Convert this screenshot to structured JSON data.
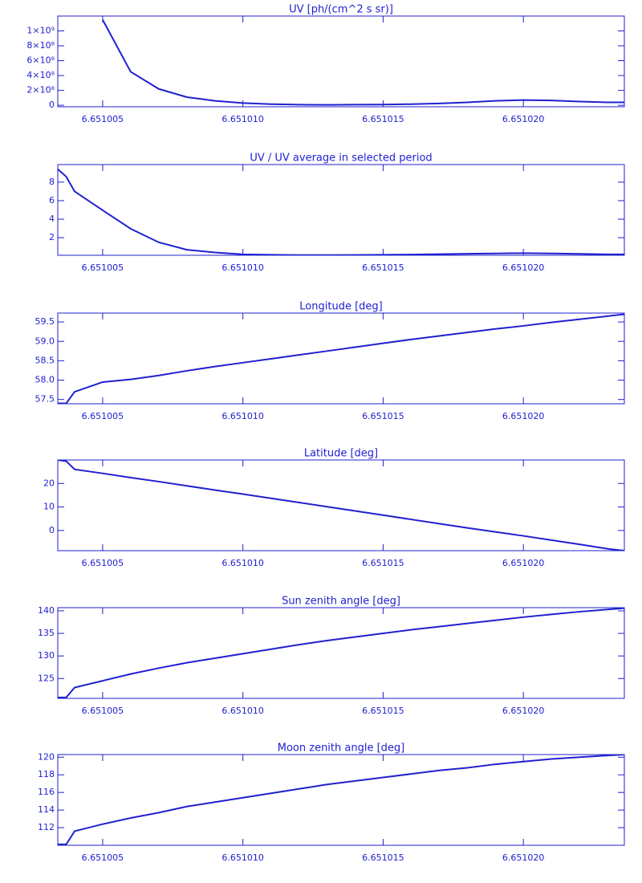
{
  "chart_data": [
    {
      "type": "line",
      "title": "UV [ph/(cm^2 s sr)]",
      "color": "#2020d0",
      "x": [
        6.6510034,
        6.6510037,
        6.651004,
        6.651005,
        6.651006,
        6.651007,
        6.651008,
        6.651009,
        6.65101,
        6.651011,
        6.651012,
        6.651013,
        6.651014,
        6.651015,
        6.651016,
        6.651017,
        6.651018,
        6.651019,
        6.65102,
        6.651021,
        6.651022,
        6.651023,
        6.6510236
      ],
      "values": [
        null,
        null,
        null,
        1150000000,
        450000000,
        220000000,
        110000000,
        60000000,
        30000000,
        15000000,
        8000000,
        6000000,
        8000000,
        10000000,
        15000000,
        25000000,
        40000000,
        60000000,
        70000000,
        65000000,
        50000000,
        40000000,
        40000000
      ],
      "xlim": [
        6.6510034,
        6.6510236
      ],
      "xticks": [
        6.651005,
        {
          "value": 6.65101,
          "label": "6.651010"
        },
        6.651015,
        {
          "value": 6.65102,
          "label": "6.651020"
        }
      ],
      "ylim": [
        -20000000,
        1200000000
      ],
      "yticks": [
        0,
        {
          "value": 200000000,
          "label": "2×10⁸"
        },
        {
          "value": 400000000,
          "label": "4×10⁸"
        },
        {
          "value": 600000000,
          "label": "6×10⁸"
        },
        {
          "value": 800000000,
          "label": "8×10⁸"
        },
        {
          "value": 1000000000,
          "label": "1×10⁹"
        }
      ]
    },
    {
      "type": "line",
      "title": "UV / UV average in selected period",
      "color": "#2020d0",
      "x": [
        6.6510034,
        6.6510037,
        6.651004,
        6.651005,
        6.651006,
        6.651007,
        6.651008,
        6.651009,
        6.65101,
        6.651011,
        6.651012,
        6.651013,
        6.651014,
        6.651015,
        6.651016,
        6.651017,
        6.651018,
        6.651019,
        6.65102,
        6.651021,
        6.651022,
        6.651023,
        6.6510236
      ],
      "values": [
        9.4,
        8.6,
        7.0,
        4.96,
        2.96,
        1.5,
        0.7,
        0.4,
        0.2,
        0.15,
        0.12,
        0.12,
        0.13,
        0.15,
        0.18,
        0.22,
        0.26,
        0.3,
        0.33,
        0.3,
        0.25,
        0.2,
        0.2
      ],
      "xlim": [
        6.6510034,
        6.6510236
      ],
      "xticks": [
        6.651005,
        {
          "value": 6.65101,
          "label": "6.651010"
        },
        6.651015,
        {
          "value": 6.65102,
          "label": "6.651020"
        }
      ],
      "ylim": [
        0.1,
        9.9
      ],
      "yticks": [
        2,
        4,
        6,
        8
      ]
    },
    {
      "type": "line",
      "title": "Longitude [deg]",
      "color": "#2020d0",
      "x": [
        6.6510034,
        6.6510037,
        6.651004,
        6.651005,
        6.651006,
        6.651007,
        6.651008,
        6.651009,
        6.65101,
        6.651011,
        6.651012,
        6.651013,
        6.651014,
        6.651015,
        6.651016,
        6.651017,
        6.651018,
        6.651019,
        6.65102,
        6.651021,
        6.651022,
        6.651023,
        6.6510236
      ],
      "values": [
        57.4,
        57.4,
        57.7,
        57.95,
        58.02,
        58.12,
        58.24,
        58.35,
        58.45,
        58.55,
        58.65,
        58.75,
        58.85,
        58.95,
        59.05,
        59.14,
        59.23,
        59.32,
        59.4,
        59.49,
        59.57,
        59.65,
        59.7
      ],
      "xlim": [
        6.6510034,
        6.6510236
      ],
      "xticks": [
        6.651005,
        {
          "value": 6.65101,
          "label": "6.651010"
        },
        6.651015,
        {
          "value": 6.65102,
          "label": "6.651020"
        }
      ],
      "ylim": [
        57.39,
        59.73
      ],
      "yticks": [
        57.5,
        {
          "value": 58,
          "label": "58.0"
        },
        58.5,
        {
          "value": 59,
          "label": "59.0"
        },
        59.5
      ]
    },
    {
      "type": "line",
      "title": "Latitude [deg]",
      "color": "#2020d0",
      "x": [
        6.6510034,
        6.6510037,
        6.651004,
        6.651005,
        6.651006,
        6.651007,
        6.651008,
        6.651009,
        6.65101,
        6.651011,
        6.651012,
        6.651013,
        6.651014,
        6.651015,
        6.651016,
        6.651017,
        6.651018,
        6.651019,
        6.65102,
        6.651021,
        6.651022,
        6.651023,
        6.6510236
      ],
      "values": [
        30,
        29.5,
        26,
        24.3,
        22.5,
        20.8,
        19,
        17.2,
        15.5,
        13.7,
        11.9,
        10.1,
        8.3,
        6.5,
        4.7,
        2.9,
        1.1,
        -0.6,
        -2.3,
        -4.1,
        -5.9,
        -7.8,
        -8.6
      ],
      "xlim": [
        6.6510034,
        6.6510236
      ],
      "xticks": [
        6.651005,
        {
          "value": 6.65101,
          "label": "6.651010"
        },
        6.651015,
        {
          "value": 6.65102,
          "label": "6.651020"
        }
      ],
      "ylim": [
        -8.6,
        30
      ],
      "yticks": [
        0,
        10,
        20
      ]
    },
    {
      "type": "line",
      "title": "Sun zenith angle [deg]",
      "color": "#2020d0",
      "x": [
        6.6510034,
        6.6510037,
        6.651004,
        6.651005,
        6.651006,
        6.651007,
        6.651008,
        6.651009,
        6.65101,
        6.651011,
        6.651012,
        6.651013,
        6.651014,
        6.651015,
        6.651016,
        6.651017,
        6.651018,
        6.651019,
        6.65102,
        6.651021,
        6.651022,
        6.651023,
        6.6510236
      ],
      "values": [
        120.8,
        120.8,
        123,
        124.5,
        126,
        127.3,
        128.5,
        129.5,
        130.5,
        131.5,
        132.5,
        133.4,
        134.2,
        135,
        135.8,
        136.5,
        137.2,
        137.9,
        138.6,
        139.2,
        139.8,
        140.3,
        140.6
      ],
      "xlim": [
        6.6510034,
        6.6510236
      ],
      "xticks": [
        6.651005,
        {
          "value": 6.65101,
          "label": "6.651010"
        },
        6.651015,
        {
          "value": 6.65102,
          "label": "6.651020"
        }
      ],
      "ylim": [
        120.6,
        140.7
      ],
      "yticks": [
        125,
        130,
        135,
        140
      ]
    },
    {
      "type": "line",
      "title": "Moon zenith angle [deg]",
      "color": "#2020d0",
      "x": [
        6.6510034,
        6.6510037,
        6.651004,
        6.651005,
        6.651006,
        6.651007,
        6.651008,
        6.651009,
        6.65101,
        6.651011,
        6.651012,
        6.651013,
        6.651014,
        6.651015,
        6.651016,
        6.651017,
        6.651018,
        6.651019,
        6.65102,
        6.651021,
        6.651022,
        6.651023,
        6.6510236
      ],
      "values": [
        110.1,
        110.1,
        111.6,
        112.4,
        113.1,
        113.7,
        114.4,
        114.9,
        115.4,
        115.9,
        116.4,
        116.9,
        117.3,
        117.7,
        118.1,
        118.5,
        118.8,
        119.2,
        119.5,
        119.8,
        120,
        120.2,
        120.3
      ],
      "xlim": [
        6.6510034,
        6.6510236
      ],
      "xticks": [
        6.651005,
        {
          "value": 6.65101,
          "label": "6.651010"
        },
        6.651015,
        {
          "value": 6.65102,
          "label": "6.651020"
        }
      ],
      "ylim": [
        110,
        120.3
      ],
      "yticks": [
        112,
        114,
        116,
        118,
        120
      ]
    }
  ]
}
